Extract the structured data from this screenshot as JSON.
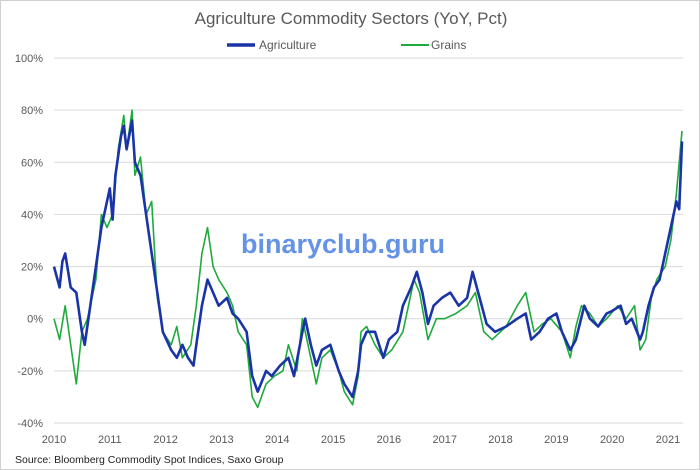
{
  "chart_data": {
    "type": "line",
    "title": "Agriculture Commodity Sectors (YoY, Pct)",
    "xlabel": "",
    "ylabel": "",
    "ylim": [
      -40,
      100
    ],
    "xlim": [
      2010,
      2021.3
    ],
    "yticks": [
      -40,
      -20,
      0,
      20,
      40,
      60,
      80,
      100
    ],
    "ytick_labels": [
      "-40%",
      "-20%",
      "0%",
      "20%",
      "40%",
      "60%",
      "80%",
      "100%"
    ],
    "xtick_labels": [
      "2010",
      "2011",
      "2012",
      "2013",
      "2014",
      "2015",
      "2016",
      "2017",
      "2018",
      "2019",
      "2020",
      "2021"
    ],
    "grid": "horizontal",
    "legend_position": "top-center",
    "series": [
      {
        "name": "Agriculture",
        "color": "#1a34a8",
        "points": [
          [
            2010.0,
            20
          ],
          [
            2010.1,
            12
          ],
          [
            2010.15,
            22
          ],
          [
            2010.2,
            25
          ],
          [
            2010.3,
            12
          ],
          [
            2010.4,
            10
          ],
          [
            2010.5,
            -5
          ],
          [
            2010.55,
            -10
          ],
          [
            2010.65,
            5
          ],
          [
            2010.75,
            20
          ],
          [
            2010.85,
            35
          ],
          [
            2010.95,
            45
          ],
          [
            2011.0,
            50
          ],
          [
            2011.05,
            38
          ],
          [
            2011.1,
            55
          ],
          [
            2011.2,
            70
          ],
          [
            2011.25,
            74
          ],
          [
            2011.3,
            65
          ],
          [
            2011.4,
            76
          ],
          [
            2011.45,
            60
          ],
          [
            2011.55,
            55
          ],
          [
            2011.65,
            40
          ],
          [
            2011.75,
            25
          ],
          [
            2011.85,
            10
          ],
          [
            2011.95,
            -5
          ],
          [
            2012.1,
            -12
          ],
          [
            2012.2,
            -15
          ],
          [
            2012.3,
            -10
          ],
          [
            2012.4,
            -15
          ],
          [
            2012.5,
            -18
          ],
          [
            2012.55,
            -10
          ],
          [
            2012.65,
            5
          ],
          [
            2012.75,
            15
          ],
          [
            2012.85,
            10
          ],
          [
            2012.95,
            5
          ],
          [
            2013.1,
            8
          ],
          [
            2013.2,
            2
          ],
          [
            2013.3,
            0
          ],
          [
            2013.45,
            -5
          ],
          [
            2013.55,
            -22
          ],
          [
            2013.65,
            -28
          ],
          [
            2013.8,
            -20
          ],
          [
            2013.9,
            -22
          ],
          [
            2014.05,
            -18
          ],
          [
            2014.2,
            -15
          ],
          [
            2014.3,
            -22
          ],
          [
            2014.45,
            -5
          ],
          [
            2014.5,
            0
          ],
          [
            2014.6,
            -10
          ],
          [
            2014.7,
            -18
          ],
          [
            2014.8,
            -12
          ],
          [
            2014.95,
            -10
          ],
          [
            2015.1,
            -20
          ],
          [
            2015.2,
            -25
          ],
          [
            2015.35,
            -30
          ],
          [
            2015.45,
            -20
          ],
          [
            2015.5,
            -10
          ],
          [
            2015.6,
            -5
          ],
          [
            2015.75,
            -5
          ],
          [
            2015.9,
            -15
          ],
          [
            2016.0,
            -8
          ],
          [
            2016.15,
            -5
          ],
          [
            2016.25,
            5
          ],
          [
            2016.4,
            12
          ],
          [
            2016.5,
            18
          ],
          [
            2016.6,
            10
          ],
          [
            2016.7,
            -2
          ],
          [
            2016.8,
            5
          ],
          [
            2016.95,
            8
          ],
          [
            2017.1,
            10
          ],
          [
            2017.25,
            5
          ],
          [
            2017.4,
            8
          ],
          [
            2017.5,
            18
          ],
          [
            2017.6,
            10
          ],
          [
            2017.75,
            -2
          ],
          [
            2017.9,
            -5
          ],
          [
            2018.1,
            -3
          ],
          [
            2018.3,
            0
          ],
          [
            2018.45,
            2
          ],
          [
            2018.55,
            -8
          ],
          [
            2018.7,
            -5
          ],
          [
            2018.85,
            0
          ],
          [
            2019.0,
            2
          ],
          [
            2019.1,
            -5
          ],
          [
            2019.25,
            -12
          ],
          [
            2019.35,
            -8
          ],
          [
            2019.5,
            5
          ],
          [
            2019.6,
            0
          ],
          [
            2019.75,
            -3
          ],
          [
            2019.9,
            2
          ],
          [
            2020.0,
            3
          ],
          [
            2020.15,
            5
          ],
          [
            2020.25,
            -2
          ],
          [
            2020.35,
            0
          ],
          [
            2020.5,
            -8
          ],
          [
            2020.55,
            -5
          ],
          [
            2020.65,
            5
          ],
          [
            2020.75,
            12
          ],
          [
            2020.85,
            15
          ],
          [
            2020.95,
            25
          ],
          [
            2021.05,
            35
          ],
          [
            2021.15,
            45
          ],
          [
            2021.2,
            42
          ],
          [
            2021.25,
            68
          ]
        ]
      },
      {
        "name": "Grains",
        "color": "#1faa3c",
        "points": [
          [
            2010.0,
            0
          ],
          [
            2010.1,
            -8
          ],
          [
            2010.2,
            5
          ],
          [
            2010.3,
            -10
          ],
          [
            2010.4,
            -25
          ],
          [
            2010.5,
            -5
          ],
          [
            2010.6,
            0
          ],
          [
            2010.75,
            15
          ],
          [
            2010.85,
            40
          ],
          [
            2010.95,
            35
          ],
          [
            2011.05,
            40
          ],
          [
            2011.15,
            65
          ],
          [
            2011.25,
            78
          ],
          [
            2011.3,
            65
          ],
          [
            2011.4,
            80
          ],
          [
            2011.45,
            55
          ],
          [
            2011.55,
            62
          ],
          [
            2011.65,
            40
          ],
          [
            2011.75,
            45
          ],
          [
            2011.85,
            8
          ],
          [
            2011.95,
            -5
          ],
          [
            2012.1,
            -10
          ],
          [
            2012.2,
            -3
          ],
          [
            2012.3,
            -15
          ],
          [
            2012.45,
            -10
          ],
          [
            2012.55,
            5
          ],
          [
            2012.65,
            25
          ],
          [
            2012.75,
            35
          ],
          [
            2012.85,
            20
          ],
          [
            2012.95,
            15
          ],
          [
            2013.1,
            10
          ],
          [
            2013.2,
            5
          ],
          [
            2013.3,
            -5
          ],
          [
            2013.45,
            -10
          ],
          [
            2013.55,
            -30
          ],
          [
            2013.65,
            -34
          ],
          [
            2013.8,
            -25
          ],
          [
            2013.95,
            -22
          ],
          [
            2014.1,
            -20
          ],
          [
            2014.2,
            -10
          ],
          [
            2014.35,
            -20
          ],
          [
            2014.45,
            0
          ],
          [
            2014.55,
            -10
          ],
          [
            2014.7,
            -25
          ],
          [
            2014.8,
            -15
          ],
          [
            2014.95,
            -12
          ],
          [
            2015.1,
            -20
          ],
          [
            2015.2,
            -28
          ],
          [
            2015.35,
            -33
          ],
          [
            2015.45,
            -22
          ],
          [
            2015.5,
            -5
          ],
          [
            2015.6,
            -3
          ],
          [
            2015.75,
            -10
          ],
          [
            2015.9,
            -15
          ],
          [
            2016.05,
            -12
          ],
          [
            2016.25,
            -5
          ],
          [
            2016.45,
            15
          ],
          [
            2016.55,
            10
          ],
          [
            2016.7,
            -8
          ],
          [
            2016.85,
            0
          ],
          [
            2017.0,
            0
          ],
          [
            2017.2,
            2
          ],
          [
            2017.4,
            5
          ],
          [
            2017.55,
            10
          ],
          [
            2017.7,
            -5
          ],
          [
            2017.85,
            -8
          ],
          [
            2018.1,
            -3
          ],
          [
            2018.3,
            5
          ],
          [
            2018.45,
            10
          ],
          [
            2018.6,
            -5
          ],
          [
            2018.75,
            -2
          ],
          [
            2018.9,
            0
          ],
          [
            2019.1,
            -5
          ],
          [
            2019.25,
            -15
          ],
          [
            2019.35,
            -3
          ],
          [
            2019.45,
            5
          ],
          [
            2019.6,
            2
          ],
          [
            2019.75,
            -3
          ],
          [
            2019.9,
            0
          ],
          [
            2020.1,
            5
          ],
          [
            2020.25,
            0
          ],
          [
            2020.4,
            5
          ],
          [
            2020.5,
            -12
          ],
          [
            2020.6,
            -8
          ],
          [
            2020.7,
            8
          ],
          [
            2020.8,
            15
          ],
          [
            2020.95,
            20
          ],
          [
            2021.05,
            30
          ],
          [
            2021.15,
            48
          ],
          [
            2021.25,
            72
          ]
        ]
      }
    ],
    "source": "Source: Bloomberg Commodity Spot Indices, Saxo Group",
    "watermark": "binaryclub.guru"
  }
}
